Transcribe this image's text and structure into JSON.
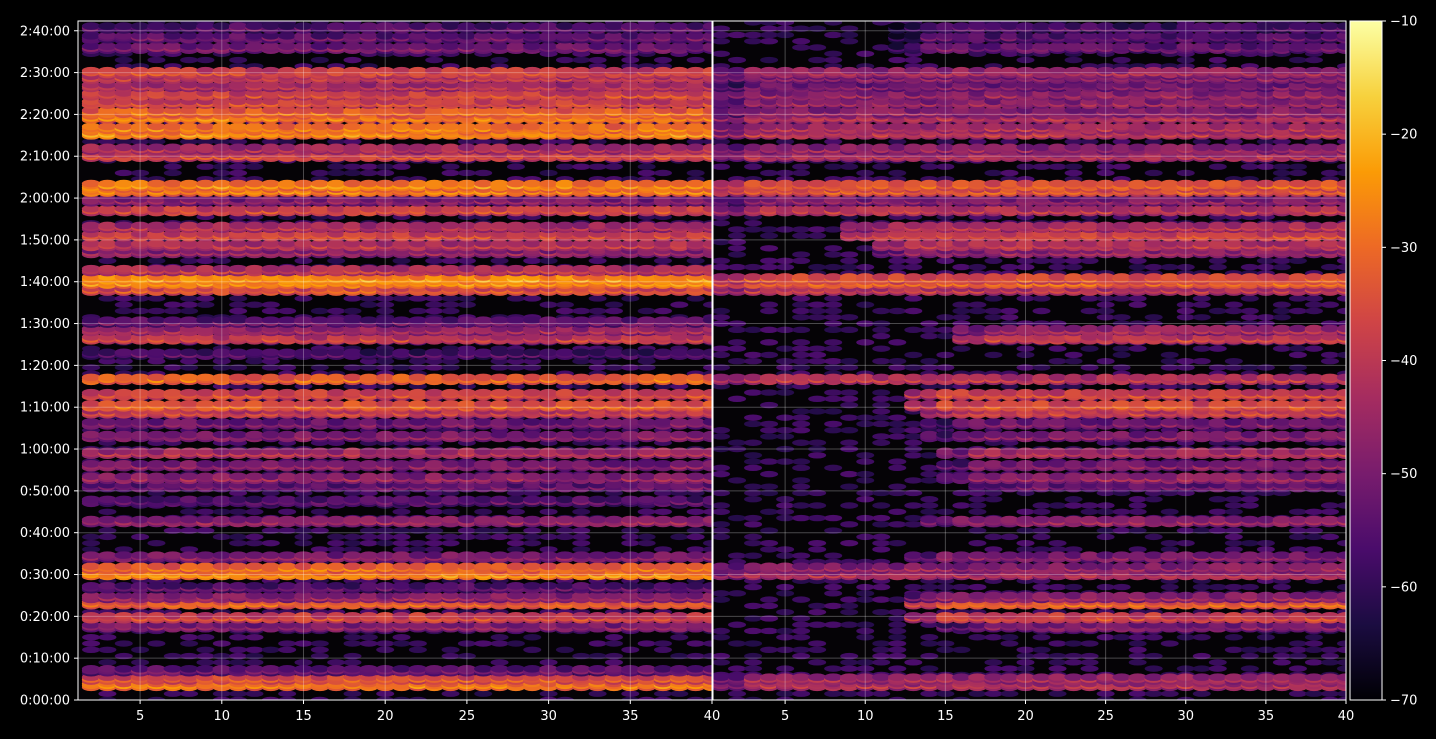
{
  "chart_data": [
    {
      "type": "heatmap",
      "title": "",
      "xlabel": "",
      "ylabel": "",
      "xlim": [
        1.2,
        40
      ],
      "ylim": [
        0,
        9740
      ],
      "x_ticks": [
        5,
        10,
        15,
        20,
        25,
        30,
        35,
        40
      ],
      "y_ticks": [
        {
          "value": 0,
          "label": "0:00:00"
        },
        {
          "value": 600,
          "label": "0:10:00"
        },
        {
          "value": 1200,
          "label": "0:20:00"
        },
        {
          "value": 1800,
          "label": "0:30:00"
        },
        {
          "value": 2400,
          "label": "0:40:00"
        },
        {
          "value": 3000,
          "label": "0:50:00"
        },
        {
          "value": 3600,
          "label": "1:00:00"
        },
        {
          "value": 4200,
          "label": "1:10:00"
        },
        {
          "value": 4800,
          "label": "1:20:00"
        },
        {
          "value": 5400,
          "label": "1:30:00"
        },
        {
          "value": 6000,
          "label": "1:40:00"
        },
        {
          "value": 6600,
          "label": "1:50:00"
        },
        {
          "value": 7200,
          "label": "2:00:00"
        },
        {
          "value": 7800,
          "label": "2:10:00"
        },
        {
          "value": 8400,
          "label": "2:20:00"
        },
        {
          "value": 9000,
          "label": "2:30:00"
        },
        {
          "value": 9600,
          "label": "2:40:00"
        }
      ],
      "grid": true,
      "bands": [
        {
          "t": 210,
          "level": -26
        },
        {
          "t": 300,
          "level": -32
        },
        {
          "t": 420,
          "level": -50
        },
        {
          "t": 1050,
          "level": -46
        },
        {
          "t": 1180,
          "level": -34
        },
        {
          "t": 1380,
          "level": -30
        },
        {
          "t": 1470,
          "level": -44
        },
        {
          "t": 1610,
          "level": -52
        },
        {
          "t": 1800,
          "level": -24
        },
        {
          "t": 1890,
          "level": -28
        },
        {
          "t": 2050,
          "level": -46
        },
        {
          "t": 2560,
          "level": -44
        },
        {
          "t": 2850,
          "level": -52
        },
        {
          "t": 3060,
          "level": -50
        },
        {
          "t": 3180,
          "level": -44
        },
        {
          "t": 3360,
          "level": -46
        },
        {
          "t": 3540,
          "level": -40
        },
        {
          "t": 3780,
          "level": -46
        },
        {
          "t": 3960,
          "level": -48
        },
        {
          "t": 4120,
          "level": -36
        },
        {
          "t": 4220,
          "level": -30
        },
        {
          "t": 4380,
          "level": -34
        },
        {
          "t": 4600,
          "level": -28
        },
        {
          "t": 4960,
          "level": -54
        },
        {
          "t": 5180,
          "level": -36
        },
        {
          "t": 5300,
          "level": -42
        },
        {
          "t": 5420,
          "level": -50
        },
        {
          "t": 5880,
          "level": -32
        },
        {
          "t": 5980,
          "level": -24
        },
        {
          "t": 6040,
          "level": -22
        },
        {
          "t": 6160,
          "level": -38
        },
        {
          "t": 6420,
          "level": -44
        },
        {
          "t": 6520,
          "level": -38
        },
        {
          "t": 6660,
          "level": -34
        },
        {
          "t": 6780,
          "level": -40
        },
        {
          "t": 7020,
          "level": -34
        },
        {
          "t": 7160,
          "level": -46
        },
        {
          "t": 7300,
          "level": -26
        },
        {
          "t": 7380,
          "level": -24
        },
        {
          "t": 7800,
          "level": -34
        },
        {
          "t": 7900,
          "level": -40
        },
        {
          "t": 8120,
          "level": -24
        },
        {
          "t": 8200,
          "level": -26
        },
        {
          "t": 8350,
          "level": -26
        },
        {
          "t": 8430,
          "level": -28
        },
        {
          "t": 8560,
          "level": -34
        },
        {
          "t": 8680,
          "level": -34
        },
        {
          "t": 8800,
          "level": -40
        },
        {
          "t": 8920,
          "level": -38
        },
        {
          "t": 9000,
          "level": -34
        },
        {
          "t": 9350,
          "level": -48
        },
        {
          "t": 9500,
          "level": -50
        },
        {
          "t": 9640,
          "level": -52
        }
      ]
    },
    {
      "type": "heatmap",
      "title": "",
      "xlabel": "",
      "ylabel": "",
      "xlim": [
        0.5,
        40
      ],
      "ylim": [
        0,
        9740
      ],
      "x_ticks": [
        5,
        10,
        15,
        20,
        25,
        30,
        35,
        40
      ],
      "grid": true,
      "bands": [
        {
          "t": 210,
          "level": -40,
          "start": 1
        },
        {
          "t": 300,
          "level": -42,
          "start": 1
        },
        {
          "t": 1050,
          "level": -46,
          "start": 15
        },
        {
          "t": 1180,
          "level": -34,
          "start": 13
        },
        {
          "t": 1380,
          "level": -30,
          "start": 13
        },
        {
          "t": 1470,
          "level": -44,
          "start": 13
        },
        {
          "t": 1800,
          "level": -40,
          "start": 1
        },
        {
          "t": 1890,
          "level": -44,
          "start": 1
        },
        {
          "t": 2050,
          "level": -46,
          "start": 13
        },
        {
          "t": 2560,
          "level": -44,
          "start": 14
        },
        {
          "t": 3060,
          "level": -50,
          "start": 17
        },
        {
          "t": 3180,
          "level": -44,
          "start": 15
        },
        {
          "t": 3360,
          "level": -46,
          "start": 15
        },
        {
          "t": 3540,
          "level": -40,
          "start": 15
        },
        {
          "t": 3780,
          "level": -46,
          "start": 14
        },
        {
          "t": 3960,
          "level": -48,
          "start": 14
        },
        {
          "t": 4120,
          "level": -36,
          "start": 14
        },
        {
          "t": 4220,
          "level": -32,
          "start": 13
        },
        {
          "t": 4380,
          "level": -34,
          "start": 13
        },
        {
          "t": 4600,
          "level": -38,
          "start": 1
        },
        {
          "t": 5180,
          "level": -36,
          "start": 16
        },
        {
          "t": 5300,
          "level": -42,
          "start": 16
        },
        {
          "t": 5880,
          "level": -38,
          "start": 1
        },
        {
          "t": 5980,
          "level": -30,
          "start": 1
        },
        {
          "t": 6040,
          "level": -32,
          "start": 1
        },
        {
          "t": 6420,
          "level": -44,
          "start": 11
        },
        {
          "t": 6520,
          "level": -38,
          "start": 11
        },
        {
          "t": 6660,
          "level": -34,
          "start": 9
        },
        {
          "t": 6780,
          "level": -40,
          "start": 9
        },
        {
          "t": 7020,
          "level": -38,
          "start": 1
        },
        {
          "t": 7160,
          "level": -46,
          "start": 1
        },
        {
          "t": 7300,
          "level": -32,
          "start": 1
        },
        {
          "t": 7380,
          "level": -30,
          "start": 1
        },
        {
          "t": 7800,
          "level": -40,
          "start": 1
        },
        {
          "t": 7900,
          "level": -44,
          "start": 1
        },
        {
          "t": 8120,
          "level": -38,
          "start": 1
        },
        {
          "t": 8200,
          "level": -40,
          "start": 1
        },
        {
          "t": 8350,
          "level": -40,
          "start": 1
        },
        {
          "t": 8430,
          "level": -44,
          "start": 1
        },
        {
          "t": 8560,
          "level": -44,
          "start": 1
        },
        {
          "t": 8680,
          "level": -44,
          "start": 1
        },
        {
          "t": 8800,
          "level": -48,
          "start": 1
        },
        {
          "t": 8920,
          "level": -46,
          "start": 1
        },
        {
          "t": 9000,
          "level": -42,
          "start": 1
        },
        {
          "t": 9350,
          "level": -50,
          "start": 12
        },
        {
          "t": 9500,
          "level": -52,
          "start": 12
        },
        {
          "t": 9640,
          "level": -54,
          "start": 12
        }
      ]
    }
  ],
  "colorbar": {
    "min": -70,
    "max": -10,
    "ticks": [
      -10,
      -20,
      -30,
      -40,
      -50,
      -60,
      -70
    ],
    "tick_labels": [
      "−10",
      "−20",
      "−30",
      "−40",
      "−50",
      "−60",
      "−70"
    ],
    "colormap": "inferno",
    "stops": [
      "#000004",
      "#1b0c41",
      "#4a0c6b",
      "#781c6d",
      "#a52c60",
      "#cf4446",
      "#ed6925",
      "#fb9b06",
      "#f7d13d",
      "#fcffa4"
    ]
  }
}
